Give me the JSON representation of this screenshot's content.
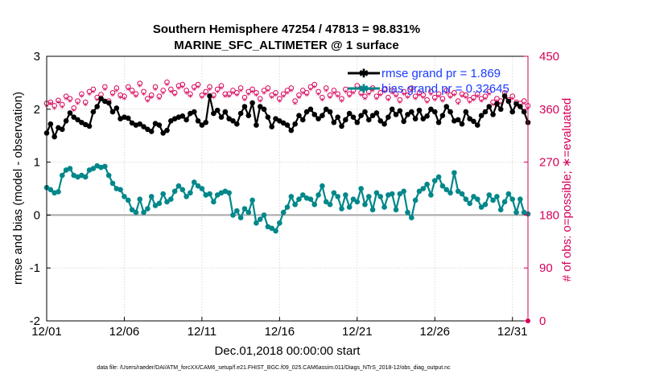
{
  "chart_data": {
    "type": "line",
    "title": "Southern Hemisphere 47254 / 47813 = 98.831%",
    "subtitle": "MARINE_SFC_ALTIMETER @ 1 surface",
    "xlabel": "Dec.01,2018 00:00:00 start",
    "ylabel": "rmse and bias (model - observation)",
    "y2label": "# of obs: o=possible; ∗=evaluated",
    "footnote": "data file: /Users/raeder/DAI/ATM_forcXX/CAM6_setup/f.e21.FHIST_BGC.f09_025.CAM6assim.011/Diags_NTrS_2018-12/obs_diag_output.nc",
    "x_tick_labels": [
      "12/01",
      "12/06",
      "12/11",
      "12/16",
      "12/21",
      "12/26",
      "12/31"
    ],
    "x_tick_days": [
      0,
      5,
      10,
      15,
      20,
      25,
      30
    ],
    "xlim": [
      0,
      31
    ],
    "ylim": [
      -2,
      3
    ],
    "y_ticks": [
      -2,
      -1,
      0,
      1,
      2,
      3
    ],
    "y_tick_labels": [
      "-2",
      "-1",
      "0",
      "1",
      "2",
      "3"
    ],
    "y2lim": [
      0,
      450
    ],
    "y2_ticks": [
      0,
      90,
      180,
      270,
      360,
      450
    ],
    "y2_tick_labels": [
      "0",
      "90",
      "180",
      "270",
      "360",
      "450"
    ],
    "colors": {
      "rmse": "#000000",
      "bias": "#00878a",
      "obs": "#d6005a",
      "zero": "#a8a8a8",
      "grid": "#d9d9d9",
      "legend_text": "#1a3cff"
    },
    "series": [
      {
        "name": "rmse grand pr = 1.869",
        "key": "rmse",
        "axis": "left",
        "x": [
          0,
          0.25,
          0.5,
          0.75,
          1,
          1.25,
          1.5,
          1.75,
          2,
          2.25,
          2.5,
          2.75,
          3,
          3.25,
          3.5,
          3.75,
          4,
          4.25,
          4.5,
          4.75,
          5,
          5.25,
          5.5,
          5.75,
          6,
          6.25,
          6.5,
          6.75,
          7,
          7.25,
          7.5,
          7.75,
          8,
          8.25,
          8.5,
          8.75,
          9,
          9.25,
          9.5,
          9.75,
          10,
          10.25,
          10.5,
          10.75,
          11,
          11.25,
          11.5,
          11.75,
          12,
          12.25,
          12.5,
          12.75,
          13,
          13.25,
          13.5,
          13.75,
          14,
          14.25,
          14.5,
          14.75,
          15,
          15.25,
          15.5,
          15.75,
          16,
          16.25,
          16.5,
          16.75,
          17,
          17.25,
          17.5,
          17.75,
          18,
          18.25,
          18.5,
          18.75,
          19,
          19.25,
          19.5,
          19.75,
          20,
          20.25,
          20.5,
          20.75,
          21,
          21.25,
          21.5,
          21.75,
          22,
          22.25,
          22.5,
          22.75,
          23,
          23.25,
          23.5,
          23.75,
          24,
          24.25,
          24.5,
          24.75,
          25,
          25.25,
          25.5,
          25.75,
          26,
          26.25,
          26.5,
          26.75,
          27,
          27.25,
          27.5,
          27.75,
          28,
          28.25,
          28.5,
          28.75,
          29,
          29.25,
          29.5,
          29.75,
          30,
          30.25,
          30.5,
          30.75,
          31
        ],
        "values": [
          1.55,
          1.72,
          1.48,
          1.65,
          1.62,
          1.78,
          1.93,
          1.85,
          1.8,
          1.75,
          1.71,
          1.68,
          1.95,
          2.05,
          2.2,
          2.15,
          2.12,
          1.95,
          2.02,
          1.82,
          1.85,
          1.83,
          1.74,
          1.7,
          1.72,
          1.67,
          1.62,
          1.58,
          1.73,
          1.7,
          1.55,
          1.6,
          1.78,
          1.82,
          1.85,
          1.87,
          1.8,
          1.92,
          1.95,
          1.78,
          1.7,
          1.75,
          2.25,
          1.92,
          1.98,
          1.85,
          1.95,
          1.82,
          1.78,
          1.72,
          1.92,
          2.05,
          1.88,
          2.12,
          1.7,
          2.05,
          2.0,
          1.85,
          1.67,
          1.82,
          1.78,
          1.74,
          1.7,
          1.6,
          1.72,
          1.88,
          1.8,
          1.95,
          2.0,
          1.9,
          1.82,
          1.88,
          2.0,
          1.95,
          1.75,
          1.85,
          1.68,
          1.8,
          1.92,
          1.85,
          1.75,
          1.88,
          1.95,
          1.8,
          1.88,
          1.93,
          1.78,
          1.72,
          1.85,
          2.0,
          1.9,
          1.97,
          1.77,
          1.9,
          1.95,
          1.82,
          1.98,
          1.82,
          1.87,
          2.0,
          1.95,
          1.75,
          1.88,
          2.05,
          1.95,
          1.78,
          1.8,
          1.72,
          1.95,
          1.82,
          1.77,
          1.7,
          1.88,
          1.95,
          2.05,
          1.9,
          2.1,
          2.0,
          2.25,
          2.15,
          1.95,
          2.1,
          2.05,
          1.95,
          1.75
        ]
      },
      {
        "name": "bias grand pr = 0.32645",
        "key": "bias",
        "axis": "left",
        "x": [
          0,
          0.25,
          0.5,
          0.75,
          1,
          1.25,
          1.5,
          1.75,
          2,
          2.25,
          2.5,
          2.75,
          3,
          3.25,
          3.5,
          3.75,
          4,
          4.25,
          4.5,
          4.75,
          5,
          5.25,
          5.5,
          5.75,
          6,
          6.25,
          6.5,
          6.75,
          7,
          7.25,
          7.5,
          7.75,
          8,
          8.25,
          8.5,
          8.75,
          9,
          9.25,
          9.5,
          9.75,
          10,
          10.25,
          10.5,
          10.75,
          11,
          11.25,
          11.5,
          11.75,
          12,
          12.25,
          12.5,
          12.75,
          13,
          13.25,
          13.5,
          13.75,
          14,
          14.25,
          14.5,
          14.75,
          15,
          15.25,
          15.5,
          15.75,
          16,
          16.25,
          16.5,
          16.75,
          17,
          17.25,
          17.5,
          17.75,
          18,
          18.25,
          18.5,
          18.75,
          19,
          19.25,
          19.5,
          19.75,
          20,
          20.25,
          20.5,
          20.75,
          21,
          21.25,
          21.5,
          21.75,
          22,
          22.25,
          22.5,
          22.75,
          23,
          23.25,
          23.5,
          23.75,
          24,
          24.25,
          24.5,
          24.75,
          25,
          25.25,
          25.5,
          25.75,
          26,
          26.25,
          26.5,
          26.75,
          27,
          27.25,
          27.5,
          27.75,
          28,
          28.25,
          28.5,
          28.75,
          29,
          29.25,
          29.5,
          29.75,
          30,
          30.25,
          30.5,
          30.75,
          31
        ],
        "values": [
          0.52,
          0.48,
          0.42,
          0.44,
          0.75,
          0.85,
          0.88,
          0.75,
          0.72,
          0.75,
          0.72,
          0.85,
          0.88,
          0.93,
          0.9,
          0.92,
          0.75,
          0.6,
          0.5,
          0.48,
          0.35,
          0.28,
          0.1,
          0.05,
          0.3,
          0.05,
          0.12,
          0.35,
          0.18,
          0.22,
          0.4,
          0.25,
          0.3,
          0.45,
          0.55,
          0.48,
          0.35,
          0.42,
          0.62,
          0.55,
          0.5,
          0.38,
          0.4,
          0.25,
          0.38,
          0.42,
          0.45,
          0.42,
          0.0,
          0.08,
          -0.05,
          0.12,
          0.05,
          0.28,
          -0.15,
          -0.08,
          0.0,
          -0.22,
          -0.25,
          -0.3,
          -0.15,
          0.05,
          0.15,
          0.35,
          0.2,
          0.3,
          0.38,
          0.32,
          0.3,
          0.2,
          0.38,
          0.55,
          0.25,
          0.2,
          0.42,
          0.35,
          0.12,
          0.38,
          0.15,
          0.3,
          0.25,
          0.5,
          0.2,
          0.35,
          0.1,
          0.42,
          0.35,
          0.15,
          0.38,
          0.4,
          0.1,
          0.4,
          0.45,
          0.05,
          -0.05,
          0.28,
          0.45,
          0.5,
          0.58,
          0.38,
          0.65,
          0.72,
          0.55,
          0.48,
          0.42,
          0.8,
          0.45,
          0.4,
          0.3,
          0.22,
          0.35,
          0.3,
          0.15,
          0.2,
          0.38,
          0.28,
          0.35,
          0.1,
          0.25,
          0.4,
          0.3,
          0.05,
          0.3,
          0.05,
          0.02
        ]
      },
      {
        "name": "possible",
        "key": "possible",
        "axis": "right",
        "marker": "o",
        "x": [
          0,
          0.25,
          0.5,
          0.75,
          1,
          1.25,
          1.5,
          1.75,
          2,
          2.25,
          2.5,
          2.75,
          3,
          3.25,
          3.5,
          3.75,
          4,
          4.25,
          4.5,
          4.75,
          5,
          5.25,
          5.5,
          5.75,
          6,
          6.25,
          6.5,
          6.75,
          7,
          7.25,
          7.5,
          7.75,
          8,
          8.25,
          8.5,
          8.75,
          9,
          9.25,
          9.5,
          9.75,
          10,
          10.25,
          10.5,
          10.75,
          11,
          11.25,
          11.5,
          11.75,
          12,
          12.25,
          12.5,
          12.75,
          13,
          13.25,
          13.5,
          13.75,
          14,
          14.25,
          14.5,
          14.75,
          15,
          15.25,
          15.5,
          15.75,
          16,
          16.25,
          16.5,
          16.75,
          17,
          17.25,
          17.5,
          17.75,
          18,
          18.25,
          18.5,
          18.75,
          19,
          19.25,
          19.5,
          19.75,
          20,
          20.25,
          20.5,
          20.75,
          21,
          21.25,
          21.5,
          21.75,
          22,
          22.25,
          22.5,
          22.75,
          23,
          23.25,
          23.5,
          23.75,
          24,
          24.25,
          24.5,
          24.75,
          25,
          25.25,
          25.5,
          25.75,
          26,
          26.25,
          26.5,
          26.75,
          27,
          27.25,
          27.5,
          27.75,
          28,
          28.25,
          28.5,
          28.75,
          29,
          29.25,
          29.5,
          29.75,
          30,
          30.25,
          30.5,
          30.75,
          31
        ],
        "values": [
          370,
          372,
          366,
          375,
          368,
          382,
          378,
          362,
          374,
          386,
          372,
          390,
          394,
          380,
          385,
          398,
          374,
          388,
          396,
          384,
          382,
          398,
          392,
          386,
          404,
          390,
          378,
          384,
          398,
          382,
          392,
          406,
          394,
          388,
          400,
          402,
          392,
          386,
          398,
          402,
          384,
          390,
          398,
          384,
          394,
          400,
          386,
          386,
          392,
          388,
          396,
          380,
          390,
          394,
          388,
          378,
          392,
          396,
          384,
          388,
          378,
          386,
          392,
          396,
          374,
          384,
          392,
          388,
          398,
          402,
          390,
          380,
          396,
          384,
          392,
          386,
          378,
          394,
          386,
          392,
          400,
          388,
          382,
          390,
          396,
          382,
          388,
          394,
          380,
          392,
          386,
          376,
          390,
          384,
          396,
          382,
          388,
          384,
          376,
          390,
          380,
          386,
          378,
          392,
          384,
          388,
          374,
          386,
          384,
          376,
          380,
          386,
          378,
          382,
          390,
          372,
          378,
          374,
          388,
          376,
          382,
          372,
          370,
          374,
          366
        ]
      },
      {
        "name": "evaluated",
        "key": "evaluated",
        "axis": "right",
        "marker": "*",
        "x": [
          0,
          0.25,
          0.5,
          0.75,
          1,
          1.25,
          1.5,
          1.75,
          2,
          2.25,
          2.5,
          2.75,
          3,
          3.25,
          3.5,
          3.75,
          4,
          4.25,
          4.5,
          4.75,
          5,
          5.25,
          5.5,
          5.75,
          6,
          6.25,
          6.5,
          6.75,
          7,
          7.25,
          7.5,
          7.75,
          8,
          8.25,
          8.5,
          8.75,
          9,
          9.25,
          9.5,
          9.75,
          10,
          10.25,
          10.5,
          10.75,
          11,
          11.25,
          11.5,
          11.75,
          12,
          12.25,
          12.5,
          12.75,
          13,
          13.25,
          13.5,
          13.75,
          14,
          14.25,
          14.5,
          14.75,
          15,
          15.25,
          15.5,
          15.75,
          16,
          16.25,
          16.5,
          16.75,
          17,
          17.25,
          17.5,
          17.75,
          18,
          18.25,
          18.5,
          18.75,
          19,
          19.25,
          19.5,
          19.75,
          20,
          20.25,
          20.5,
          20.75,
          21,
          21.25,
          21.5,
          21.75,
          22,
          22.25,
          22.5,
          22.75,
          23,
          23.25,
          23.5,
          23.75,
          24,
          24.25,
          24.5,
          24.75,
          25,
          25.25,
          25.5,
          25.75,
          26,
          26.25,
          26.5,
          26.75,
          27,
          27.25,
          27.5,
          27.75,
          28,
          28.25,
          28.5,
          28.75,
          29,
          29.25,
          29.5,
          29.75,
          30,
          30.25,
          30.5,
          30.75,
          31
        ],
        "values": [
          364,
          368,
          360,
          370,
          362,
          376,
          372,
          356,
          368,
          380,
          366,
          384,
          388,
          374,
          379,
          392,
          368,
          382,
          390,
          378,
          376,
          392,
          386,
          380,
          398,
          384,
          372,
          378,
          392,
          376,
          386,
          400,
          388,
          382,
          394,
          396,
          386,
          380,
          392,
          396,
          378,
          384,
          392,
          378,
          388,
          394,
          380,
          380,
          386,
          382,
          390,
          374,
          384,
          388,
          382,
          372,
          386,
          390,
          378,
          382,
          372,
          380,
          386,
          390,
          368,
          378,
          386,
          382,
          392,
          396,
          384,
          374,
          390,
          378,
          386,
          380,
          372,
          388,
          380,
          386,
          394,
          382,
          376,
          384,
          390,
          376,
          382,
          388,
          374,
          386,
          380,
          370,
          384,
          378,
          390,
          376,
          382,
          378,
          370,
          384,
          374,
          380,
          372,
          386,
          378,
          382,
          368,
          380,
          378,
          370,
          374,
          380,
          372,
          376,
          384,
          366,
          372,
          368,
          382,
          370,
          376,
          366,
          364,
          368,
          360
        ]
      }
    ]
  }
}
